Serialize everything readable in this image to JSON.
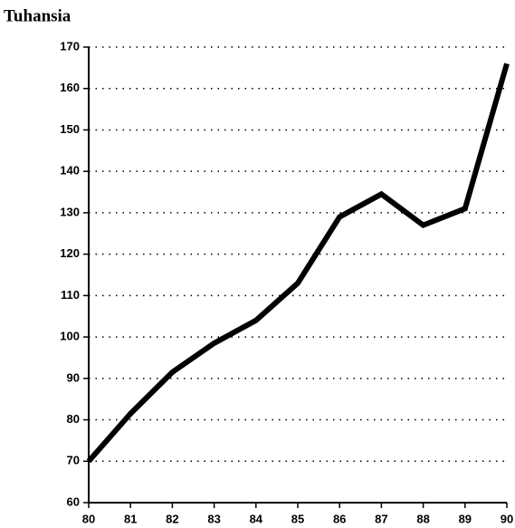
{
  "chart_data": {
    "type": "line",
    "title": "Tuhansia",
    "categories": [
      "80",
      "81",
      "82",
      "83",
      "84",
      "85",
      "86",
      "87",
      "88",
      "89",
      "90"
    ],
    "values": [
      70,
      81.5,
      91.5,
      98.5,
      104,
      113,
      129,
      134.5,
      127,
      131,
      166
    ],
    "color": "#000000",
    "ylim": [
      60,
      170
    ],
    "yticks": [
      60,
      70,
      80,
      90,
      100,
      110,
      120,
      130,
      140,
      150,
      160,
      170
    ],
    "grid": true
  }
}
